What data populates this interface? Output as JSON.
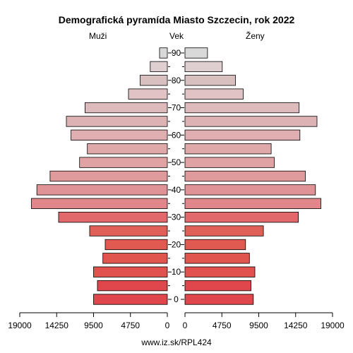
{
  "chart_data": {
    "type": "bar",
    "title": "Demografická pyramída Miasto Szczecin, rok 2022",
    "left_label": "Muži",
    "center_label": "Vek",
    "right_label": "Ženy",
    "age_groups": [
      "0",
      "5",
      "10",
      "15",
      "20",
      "25",
      "30",
      "35",
      "40",
      "45",
      "50",
      "55",
      "60",
      "65",
      "70",
      "75",
      "80",
      "85",
      "90"
    ],
    "age_tick_labels": [
      "0",
      "10",
      "20",
      "30",
      "40",
      "50",
      "60",
      "70",
      "80",
      "90"
    ],
    "x_tick_labels_left": [
      "19000",
      "14250",
      "9500",
      "4750",
      "0"
    ],
    "x_tick_labels_right": [
      "0",
      "4750",
      "9500",
      "14250",
      "19000"
    ],
    "xlim": [
      0,
      19000
    ],
    "series": [
      {
        "name": "Muži",
        "values": [
          9500,
          9000,
          9500,
          8300,
          8000,
          10000,
          14000,
          17500,
          16800,
          15100,
          11300,
          10300,
          12400,
          13000,
          10600,
          5000,
          3500,
          2200,
          1000
        ]
      },
      {
        "name": "Ženy",
        "values": [
          8800,
          8500,
          9000,
          8300,
          7800,
          10100,
          14600,
          17500,
          16800,
          15500,
          11500,
          11100,
          14800,
          17000,
          14700,
          7500,
          6500,
          4800,
          2900
        ]
      }
    ],
    "colors": [
      "#e0474c",
      "#e0474c",
      "#e1514e",
      "#e1554f",
      "#e15a52",
      "#e05f57",
      "#e1696b",
      "#e1878b",
      "#df9396",
      "#df9b9c",
      "#e0a2a3",
      "#dfa8a9",
      "#dfaeb1",
      "#ddb2b4",
      "#ddbabc",
      "#e2c3c5",
      "#d8c0c1",
      "#e0cfd1",
      "#d9d9d9"
    ],
    "footer": "www.iz.sk/RPL424"
  }
}
